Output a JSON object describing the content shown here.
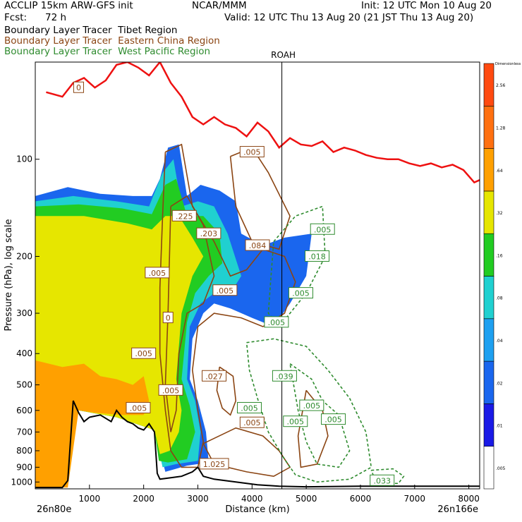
{
  "header": {
    "model": "ACCLIP 15km ARW-GFS init",
    "center": "NCAR/MMM",
    "init": "Init: 12 UTC Mon 10 Aug 20",
    "fcst_label": "Fcst:",
    "fcst_value": "72 h",
    "valid": "Valid: 12 UTC Thu 13 Aug 20 (21 JST Thu 13 Aug 20)",
    "field_tibet": "Boundary Layer Tracer  Tibet Region",
    "field_eastchina": "Boundary Layer Tracer  Eastern China Region",
    "field_westpac": "Boundary Layer Tracer  West Pacific Region"
  },
  "colors": {
    "tibet_label": "#000000",
    "eastchina_label": "#8b4513",
    "westpac_label": "#2e8b2e",
    "tropopause": "#ee1111",
    "terrain": "#000000"
  },
  "chart_data": {
    "type": "heatmap",
    "xlabel": "Distance (km)",
    "ylabel": "Pressure (hPa), log scale",
    "xlim": [
      0,
      8200
    ],
    "ylim": [
      1050,
      50
    ],
    "y_scale": "log",
    "x_ticks": [
      1000,
      2000,
      3000,
      4000,
      5000,
      6000,
      7000,
      8000
    ],
    "y_ticks": [
      100,
      200,
      300,
      400,
      500,
      600,
      700,
      800,
      900,
      1000
    ],
    "x_start_label": "26n80e",
    "x_end_label": "26n166e",
    "marker": {
      "label": "ROAH",
      "x": 4550
    },
    "colorbar": {
      "top_label": "Dimensionless",
      "levels": [
        ".005",
        ".01",
        ".02",
        ".04",
        ".08",
        ".16",
        ".32",
        ".64",
        "1.28",
        "2.56"
      ],
      "colors": [
        "#ffffff",
        "#1a1ae6",
        "#1a66ee",
        "#1ea0f0",
        "#20d0d0",
        "#22cc22",
        "#e6e600",
        "#ffa000",
        "#ff7010",
        "#ff4a10"
      ]
    },
    "tropopause": {
      "x": [
        200,
        500,
        700,
        900,
        1100,
        1300,
        1500,
        1700,
        1900,
        2100,
        2300,
        2500,
        2700,
        2900,
        3100,
        3300,
        3500,
        3700,
        3900,
        4100,
        4300,
        4500,
        4700,
        4900,
        5100,
        5300,
        5500,
        5700,
        5900,
        6100,
        6300,
        6500,
        6700,
        6900,
        7100,
        7300,
        7500,
        7700,
        7900,
        8100,
        8200
      ],
      "p": [
        62,
        64,
        58,
        56,
        60,
        57,
        51,
        50,
        52,
        55,
        50,
        58,
        64,
        74,
        78,
        74,
        78,
        80,
        85,
        77,
        82,
        92,
        86,
        90,
        91,
        88,
        95,
        92,
        94,
        97,
        99,
        100,
        100,
        103,
        105,
        103,
        106,
        104,
        108,
        118,
        116
      ]
    },
    "terrain_surface": {
      "x": [
        0,
        500,
        600,
        700,
        800,
        900,
        1000,
        1200,
        1400,
        1500,
        1600,
        1700,
        1800,
        1900,
        2000,
        2100,
        2200,
        2250,
        2300,
        2500,
        2700,
        2900,
        3000,
        3100,
        3300,
        3500,
        3700,
        3900,
        4100,
        4300,
        4500,
        5000,
        6000,
        7000,
        8000,
        8200
      ],
      "p": [
        1040,
        1040,
        990,
        560,
        610,
        650,
        630,
        620,
        650,
        600,
        630,
        650,
        660,
        680,
        690,
        660,
        700,
        940,
        980,
        970,
        960,
        930,
        900,
        960,
        980,
        990,
        1000,
        1010,
        1020,
        1025,
        1030,
        1035,
        1030,
        1030,
        1030,
        1030
      ]
    },
    "labels_eastchina": [
      {
        "text": ".005",
        "x": 4000,
        "p": 95
      },
      {
        "text": ".225",
        "x": 2750,
        "p": 150
      },
      {
        "text": ".203",
        "x": 3200,
        "p": 170
      },
      {
        "text": ".084",
        "x": 4100,
        "p": 185
      },
      {
        "text": ".005",
        "x": 2250,
        "p": 225
      },
      {
        "text": ".005",
        "x": 3500,
        "p": 255
      },
      {
        "text": "0",
        "x": 2450,
        "p": 310
      },
      {
        "text": ".005",
        "x": 2000,
        "p": 400
      },
      {
        "text": ".027",
        "x": 3300,
        "p": 470
      },
      {
        "text": ".005",
        "x": 2500,
        "p": 520
      },
      {
        "text": ".005",
        "x": 1900,
        "p": 590
      },
      {
        "text": ".005",
        "x": 4000,
        "p": 655
      },
      {
        "text": "1.025",
        "x": 3300,
        "p": 880
      },
      {
        "text": "0",
        "x": 800,
        "p": 60
      }
    ],
    "labels_westpac": [
      {
        "text": ".005",
        "x": 5300,
        "p": 165
      },
      {
        "text": ".018",
        "x": 5200,
        "p": 200
      },
      {
        "text": ".005",
        "x": 4900,
        "p": 260
      },
      {
        "text": ".005",
        "x": 4450,
        "p": 320
      },
      {
        "text": ".039",
        "x": 4600,
        "p": 470
      },
      {
        "text": ".005",
        "x": 3950,
        "p": 590
      },
      {
        "text": ".005",
        "x": 5100,
        "p": 580
      },
      {
        "text": ".005",
        "x": 4800,
        "p": 650
      },
      {
        "text": ".005",
        "x": 5500,
        "p": 640
      },
      {
        "text": ".033",
        "x": 6400,
        "p": 990
      }
    ]
  }
}
